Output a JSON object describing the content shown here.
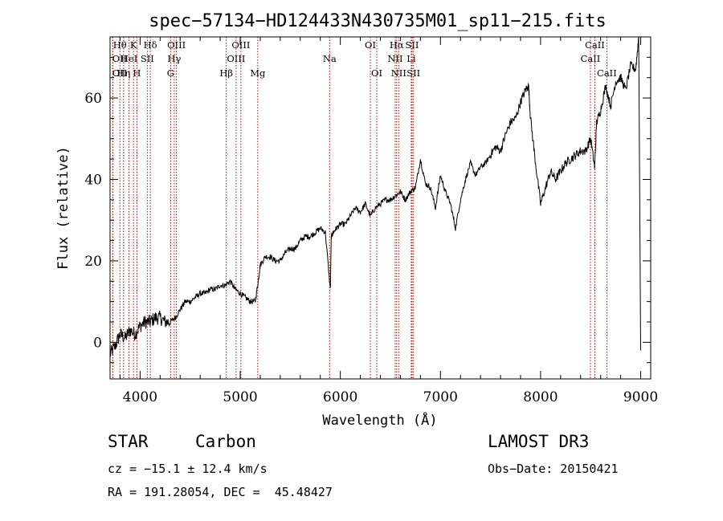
{
  "chart_data": {
    "type": "line",
    "title": "spec−57134−HD124433N430735M01_sp11−215.fits",
    "xlabel": "Wavelength (Å)",
    "ylabel": "Flux (relative)",
    "xlim": [
      3700,
      9100
    ],
    "ylim": [
      -9,
      75
    ],
    "xticks": [
      4000,
      5000,
      6000,
      7000,
      8000,
      9000
    ],
    "yticks": [
      0,
      20,
      40,
      60
    ],
    "grid": false,
    "legend": "none",
    "line_color": "#000000",
    "marker_color": "#c00000",
    "series": [
      {
        "x": [
          3700,
          3750,
          3800,
          3850,
          3900,
          3950,
          4000,
          4050,
          4100,
          4150,
          4200,
          4250,
          4300,
          4350,
          4400,
          4450,
          4500,
          4550,
          4600,
          4650,
          4700,
          4750,
          4800,
          4850,
          4900,
          4950,
          5000,
          5050,
          5100,
          5150,
          5180,
          5200,
          5250,
          5300,
          5350,
          5400,
          5450,
          5500,
          5550,
          5600,
          5650,
          5700,
          5750,
          5800,
          5850,
          5900,
          5910,
          5930,
          5960,
          6000,
          6050,
          6100,
          6150,
          6200,
          6250,
          6300,
          6350,
          6400,
          6450,
          6500,
          6550,
          6600,
          6650,
          6700,
          6750,
          6800,
          6850,
          6900,
          6950,
          7000,
          7050,
          7100,
          7150,
          7200,
          7250,
          7300,
          7350,
          7400,
          7450,
          7500,
          7550,
          7600,
          7650,
          7700,
          7750,
          7800,
          7850,
          7880,
          7900,
          7950,
          8000,
          8050,
          8100,
          8150,
          8200,
          8250,
          8300,
          8350,
          8400,
          8450,
          8500,
          8540,
          8560,
          8600,
          8650,
          8700,
          8750,
          8800,
          8850,
          8900,
          8950,
          8980,
          9000
        ],
        "y": [
          -3,
          -1,
          2,
          1,
          3,
          2,
          4,
          5,
          5,
          6,
          6,
          5,
          5,
          6,
          8,
          10,
          10,
          11,
          12,
          12,
          13,
          13,
          14,
          14,
          15,
          13,
          12,
          11,
          10,
          10,
          15,
          19,
          21,
          21,
          20,
          20,
          22,
          23,
          23,
          25,
          26,
          26,
          27,
          28,
          27,
          13,
          26,
          27,
          28,
          29,
          29,
          31,
          33,
          32,
          34,
          31,
          33,
          34,
          35,
          35,
          36,
          37,
          35,
          37,
          38,
          45,
          39,
          38,
          33,
          41,
          37,
          34,
          28,
          35,
          40,
          44,
          41,
          43,
          44,
          46,
          48,
          47,
          51,
          54,
          55,
          59,
          62,
          63,
          55,
          44,
          34,
          38,
          42,
          40,
          42,
          44,
          45,
          46,
          47,
          47,
          50,
          43,
          54,
          57,
          63,
          58,
          64,
          65,
          62,
          68,
          67,
          75,
          -2
        ]
      }
    ],
    "line_markers": [
      {
        "label": "Hθ",
        "wavelength": 3798,
        "row": 0
      },
      {
        "label": "OII",
        "wavelength": 3727,
        "row": 1
      },
      {
        "label": "OII",
        "wavelength": 3727,
        "row": 2
      },
      {
        "label": "K",
        "wavelength": 3934,
        "row": 0
      },
      {
        "label": "HeI",
        "wavelength": 3889,
        "row": 1
      },
      {
        "label": "Hη",
        "wavelength": 3835,
        "row": 2
      },
      {
        "label": "H",
        "wavelength": 3968,
        "row": 2
      },
      {
        "label": "SII",
        "wavelength": 4072,
        "row": 1
      },
      {
        "label": "Hδ",
        "wavelength": 4102,
        "row": 0
      },
      {
        "label": "OIII",
        "wavelength": 4363,
        "row": 0
      },
      {
        "label": "Hγ",
        "wavelength": 4341,
        "row": 1
      },
      {
        "label": "G",
        "wavelength": 4305,
        "row": 2
      },
      {
        "label": "Hβ",
        "wavelength": 4861,
        "row": 2
      },
      {
        "label": "OIII",
        "wavelength": 5007,
        "row": 0
      },
      {
        "label": "OIII",
        "wavelength": 4959,
        "row": 1
      },
      {
        "label": "Mg",
        "wavelength": 5175,
        "row": 2
      },
      {
        "label": "Na",
        "wavelength": 5893,
        "row": 1
      },
      {
        "label": "OI",
        "wavelength": 6300,
        "row": 0
      },
      {
        "label": "OI",
        "wavelength": 6364,
        "row": 2
      },
      {
        "label": "Hα",
        "wavelength": 6563,
        "row": 0
      },
      {
        "label": "NII",
        "wavelength": 6548,
        "row": 1
      },
      {
        "label": "NII",
        "wavelength": 6583,
        "row": 2
      },
      {
        "label": "SII",
        "wavelength": 6717,
        "row": 0
      },
      {
        "label": "Li",
        "wavelength": 6708,
        "row": 1
      },
      {
        "label": "SII",
        "wavelength": 6731,
        "row": 2
      },
      {
        "label": "CaII",
        "wavelength": 8542,
        "row": 0
      },
      {
        "label": "CaII",
        "wavelength": 8498,
        "row": 1
      },
      {
        "label": "CaII",
        "wavelength": 8662,
        "row": 2
      }
    ]
  },
  "info": {
    "class_label": "STAR",
    "subclass": "Carbon",
    "survey": "LAMOST DR3",
    "cz": "cz = −15.1 ± 12.4 km/s",
    "obs_date": "Obs−Date: 20150421",
    "coords": "RA = 191.28054, DEC =  45.48427"
  }
}
